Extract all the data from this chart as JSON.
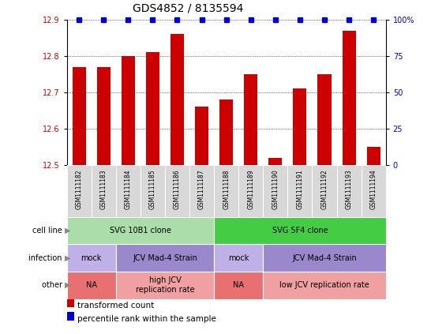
{
  "title": "GDS4852 / 8135594",
  "samples": [
    "GSM1111182",
    "GSM1111183",
    "GSM1111184",
    "GSM1111185",
    "GSM1111186",
    "GSM1111187",
    "GSM1111188",
    "GSM1111189",
    "GSM1111190",
    "GSM1111191",
    "GSM1111192",
    "GSM1111193",
    "GSM1111194"
  ],
  "bar_values": [
    12.77,
    12.77,
    12.8,
    12.81,
    12.86,
    12.66,
    12.68,
    12.75,
    12.52,
    12.71,
    12.75,
    12.87,
    12.55
  ],
  "percentile_values": [
    100,
    100,
    100,
    100,
    100,
    100,
    100,
    100,
    100,
    100,
    100,
    100,
    100
  ],
  "ylim_left": [
    12.5,
    12.9
  ],
  "ylim_right": [
    0,
    100
  ],
  "yticks_left": [
    12.5,
    12.6,
    12.7,
    12.8,
    12.9
  ],
  "yticks_right": [
    0,
    25,
    50,
    75,
    100
  ],
  "bar_color": "#cc0000",
  "dot_color": "#0000cc",
  "title_fontsize": 10,
  "tick_fontsize": 7,
  "sample_fontsize": 5.5,
  "annot_fontsize": 7,
  "legend_fontsize": 7.5,
  "annotation_rows": [
    {
      "label": "cell line",
      "groups": [
        {
          "text": "SVG 10B1 clone",
          "start": 0,
          "end": 5,
          "color": "#aaddaa"
        },
        {
          "text": "SVG 5F4 clone",
          "start": 6,
          "end": 12,
          "color": "#44cc44"
        }
      ]
    },
    {
      "label": "infection",
      "groups": [
        {
          "text": "mock",
          "start": 0,
          "end": 1,
          "color": "#c0b0e8"
        },
        {
          "text": "JCV Mad-4 Strain",
          "start": 2,
          "end": 5,
          "color": "#9988cc"
        },
        {
          "text": "mock",
          "start": 6,
          "end": 7,
          "color": "#c0b0e8"
        },
        {
          "text": "JCV Mad-4 Strain",
          "start": 8,
          "end": 12,
          "color": "#9988cc"
        }
      ]
    },
    {
      "label": "other",
      "groups": [
        {
          "text": "NA",
          "start": 0,
          "end": 1,
          "color": "#e87070"
        },
        {
          "text": "high JCV\nreplication rate",
          "start": 2,
          "end": 5,
          "color": "#f0a0a0"
        },
        {
          "text": "NA",
          "start": 6,
          "end": 7,
          "color": "#e87070"
        },
        {
          "text": "low JCV replication rate",
          "start": 8,
          "end": 12,
          "color": "#f0a0a0"
        }
      ]
    }
  ],
  "legend_items": [
    {
      "color": "#cc0000",
      "label": "transformed count"
    },
    {
      "color": "#0000cc",
      "label": "percentile rank within the sample"
    }
  ]
}
